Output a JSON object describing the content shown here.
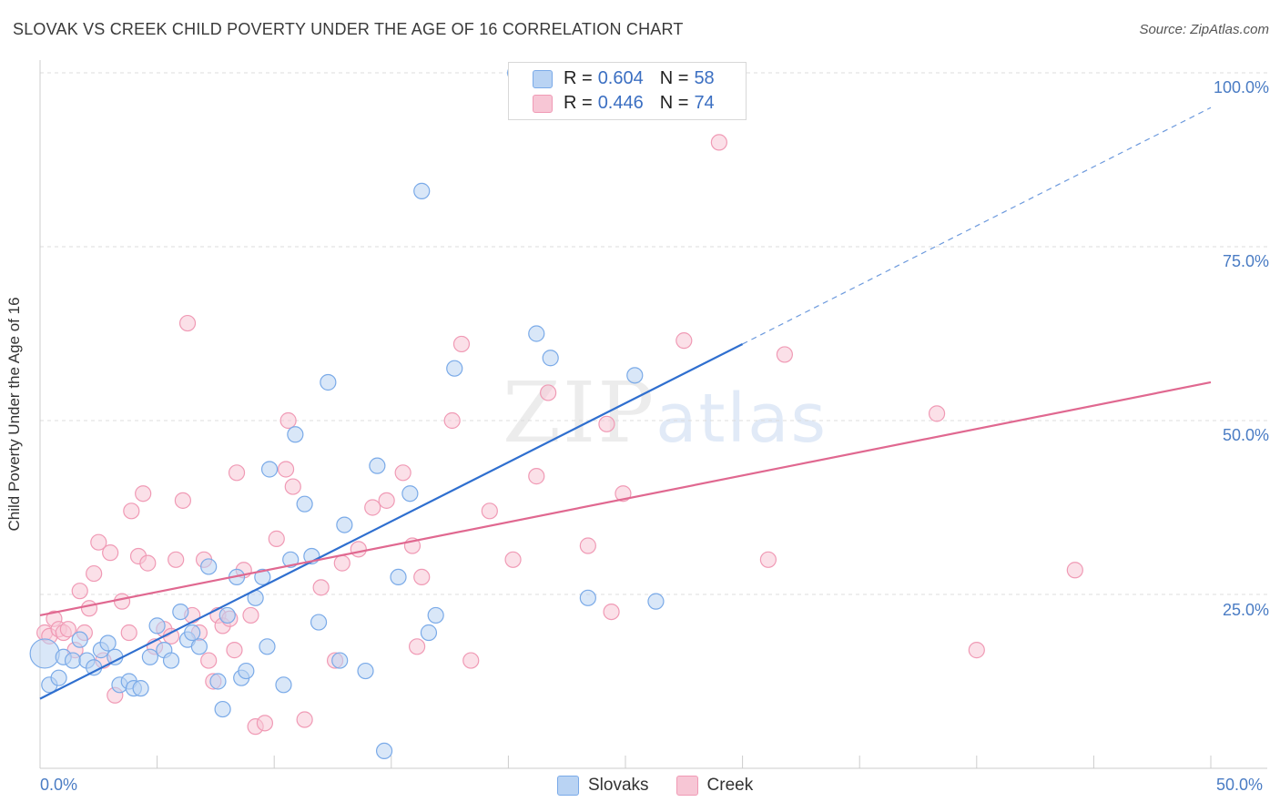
{
  "title": "SLOVAK VS CREEK CHILD POVERTY UNDER THE AGE OF 16 CORRELATION CHART",
  "source": "Source: ZipAtlas.com",
  "watermark": {
    "zip": "ZIP",
    "atlas": "atlas"
  },
  "legend": {
    "series1": {
      "r_label": "R = ",
      "r_value": "0.604",
      "n_label": "N = ",
      "n_value": "58"
    },
    "series2": {
      "r_label": "R = ",
      "r_value": "0.446",
      "n_label": "N = ",
      "n_value": "74"
    }
  },
  "colors": {
    "slovaks": "#7aaae8",
    "slovaks_fill": "#b9d3f3",
    "creek": "#f09ab5",
    "creek_fill": "#f7c6d5",
    "blue_line": "#2f6fcf",
    "pink_line": "#e06890"
  },
  "chart_data": {
    "type": "scatter",
    "title": "SLOVAK VS CREEK CHILD POVERTY UNDER THE AGE OF 16 CORRELATION CHART",
    "xlabel": "",
    "ylabel": "Child Poverty Under the Age of 16",
    "xlim": [
      0,
      50
    ],
    "ylim": [
      0,
      100
    ],
    "x_tick_labels": [
      "0.0%",
      "50.0%"
    ],
    "y_tick_labels": [
      "25.0%",
      "50.0%",
      "75.0%",
      "100.0%"
    ],
    "y_tick_values": [
      25,
      50,
      75,
      100
    ],
    "grid": true,
    "series": [
      {
        "name": "Slovaks",
        "r": 0.604,
        "n": 58,
        "trend": {
          "x0": 0,
          "y0": 10,
          "x1": 30,
          "y1": 61,
          "dashed_to_x": 50,
          "dashed_to_y": 95
        },
        "points": [
          [
            0.2,
            16.5
          ],
          [
            0.4,
            12
          ],
          [
            0.8,
            13
          ],
          [
            1.0,
            16
          ],
          [
            1.4,
            15.5
          ],
          [
            1.7,
            18.5
          ],
          [
            2.0,
            15.5
          ],
          [
            2.3,
            14.5
          ],
          [
            2.6,
            17
          ],
          [
            2.9,
            18
          ],
          [
            3.2,
            16
          ],
          [
            3.4,
            12
          ],
          [
            3.8,
            12.5
          ],
          [
            4.0,
            11.5
          ],
          [
            4.3,
            11.5
          ],
          [
            4.7,
            16
          ],
          [
            5.0,
            20.5
          ],
          [
            5.3,
            17
          ],
          [
            5.6,
            15.5
          ],
          [
            6.0,
            22.5
          ],
          [
            6.3,
            18.5
          ],
          [
            6.5,
            19.5
          ],
          [
            6.8,
            17.5
          ],
          [
            7.2,
            29
          ],
          [
            7.6,
            12.5
          ],
          [
            7.8,
            8.5
          ],
          [
            8.0,
            22
          ],
          [
            8.4,
            27.5
          ],
          [
            8.6,
            13
          ],
          [
            8.8,
            14
          ],
          [
            9.2,
            24.5
          ],
          [
            9.5,
            27.5
          ],
          [
            9.7,
            17.5
          ],
          [
            9.8,
            43
          ],
          [
            10.4,
            12
          ],
          [
            10.7,
            30
          ],
          [
            10.9,
            48
          ],
          [
            11.3,
            38
          ],
          [
            11.6,
            30.5
          ],
          [
            11.9,
            21
          ],
          [
            12.3,
            55.5
          ],
          [
            12.8,
            15.5
          ],
          [
            13.0,
            35
          ],
          [
            13.9,
            14
          ],
          [
            14.4,
            43.5
          ],
          [
            14.7,
            2.5
          ],
          [
            15.3,
            27.5
          ],
          [
            15.8,
            39.5
          ],
          [
            16.3,
            83
          ],
          [
            16.6,
            19.5
          ],
          [
            16.9,
            22
          ],
          [
            17.7,
            57.5
          ],
          [
            20.3,
            100
          ],
          [
            21.2,
            62.5
          ],
          [
            21.8,
            59
          ],
          [
            23.4,
            24.5
          ],
          [
            25.4,
            56.5
          ],
          [
            26.3,
            24
          ]
        ]
      },
      {
        "name": "Creek",
        "r": 0.446,
        "n": 74,
        "trend": {
          "x0": 0,
          "y0": 22,
          "x1": 50,
          "y1": 55.5
        },
        "points": [
          [
            0.2,
            19.5
          ],
          [
            0.4,
            19
          ],
          [
            0.6,
            21.5
          ],
          [
            0.8,
            20
          ],
          [
            1.0,
            19.5
          ],
          [
            1.2,
            20
          ],
          [
            1.5,
            17
          ],
          [
            1.7,
            25.5
          ],
          [
            1.9,
            19.5
          ],
          [
            2.1,
            23
          ],
          [
            2.3,
            28
          ],
          [
            2.5,
            32.5
          ],
          [
            2.7,
            15.5
          ],
          [
            3.0,
            31
          ],
          [
            3.2,
            10.5
          ],
          [
            3.5,
            24
          ],
          [
            3.8,
            19.5
          ],
          [
            3.9,
            37
          ],
          [
            4.2,
            30.5
          ],
          [
            4.4,
            39.5
          ],
          [
            4.6,
            29.5
          ],
          [
            4.9,
            17.5
          ],
          [
            5.3,
            20
          ],
          [
            5.6,
            19
          ],
          [
            5.8,
            30
          ],
          [
            6.1,
            38.5
          ],
          [
            6.3,
            64
          ],
          [
            6.5,
            22
          ],
          [
            6.8,
            19.5
          ],
          [
            7.0,
            30
          ],
          [
            7.2,
            15.5
          ],
          [
            7.4,
            12.5
          ],
          [
            7.6,
            22
          ],
          [
            7.8,
            20.5
          ],
          [
            8.1,
            21.5
          ],
          [
            8.3,
            17
          ],
          [
            8.4,
            42.5
          ],
          [
            8.7,
            28.5
          ],
          [
            9.0,
            22
          ],
          [
            9.2,
            6
          ],
          [
            9.6,
            6.5
          ],
          [
            10.1,
            33
          ],
          [
            10.5,
            43
          ],
          [
            10.6,
            50
          ],
          [
            10.8,
            40.5
          ],
          [
            11.3,
            7
          ],
          [
            12.0,
            26
          ],
          [
            12.6,
            15.5
          ],
          [
            12.9,
            29.5
          ],
          [
            13.6,
            31.5
          ],
          [
            14.2,
            37.5
          ],
          [
            14.8,
            38.5
          ],
          [
            15.5,
            42.5
          ],
          [
            15.9,
            32
          ],
          [
            16.1,
            17.5
          ],
          [
            16.3,
            27.5
          ],
          [
            17.6,
            50
          ],
          [
            18.0,
            61
          ],
          [
            18.4,
            15.5
          ],
          [
            19.2,
            37
          ],
          [
            20.2,
            30
          ],
          [
            21.2,
            42
          ],
          [
            21.7,
            54
          ],
          [
            23.4,
            32
          ],
          [
            24.2,
            49.5
          ],
          [
            24.4,
            22.5
          ],
          [
            24.9,
            39.5
          ],
          [
            27.5,
            61.5
          ],
          [
            29.0,
            90
          ],
          [
            31.1,
            30
          ],
          [
            31.8,
            59.5
          ],
          [
            38.3,
            51
          ],
          [
            40.0,
            17
          ],
          [
            44.2,
            28.5
          ]
        ]
      }
    ]
  },
  "bottom_legend": {
    "slovaks": "Slovaks",
    "creek": "Creek"
  }
}
